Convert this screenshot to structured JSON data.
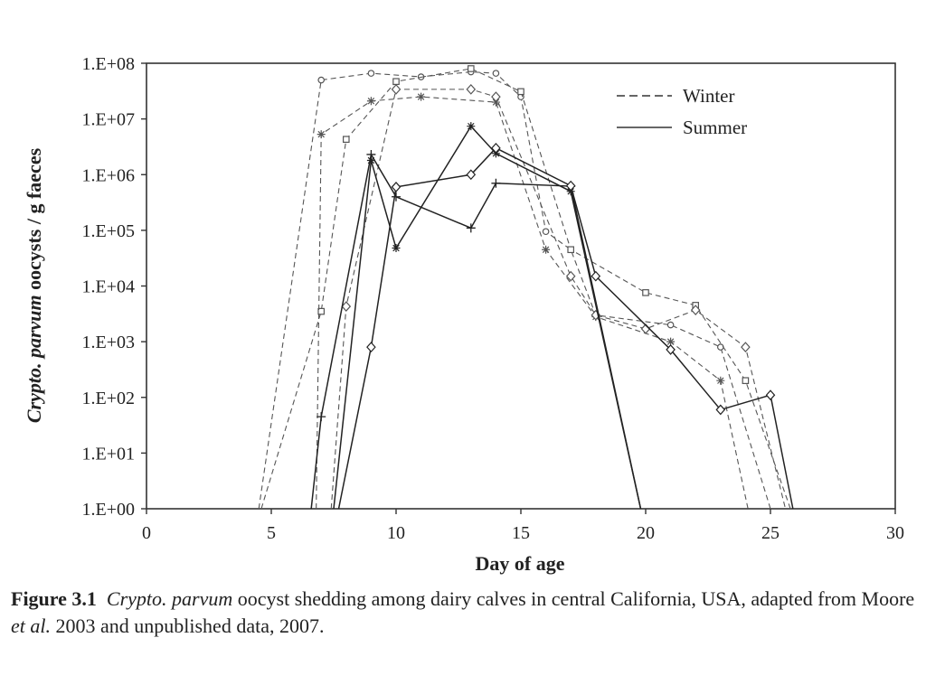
{
  "chart_data": {
    "type": "line",
    "xlabel": "Day of age",
    "ylabel_italic": "Crypto. parvum",
    "ylabel_rest": " oocysts / g faeces",
    "xlim": [
      0,
      30
    ],
    "ylim_log10": [
      0,
      8
    ],
    "y_scale": "log",
    "x_ticks": [
      0,
      5,
      10,
      15,
      20,
      25,
      30
    ],
    "y_ticks": [
      "1.E+00",
      "1.E+01",
      "1.E+02",
      "1.E+03",
      "1.E+04",
      "1.E+05",
      "1.E+06",
      "1.E+07",
      "1.E+08"
    ],
    "grid": false,
    "legend_position": "top-right",
    "legend": [
      {
        "label": "Winter",
        "style": "dashed"
      },
      {
        "label": "Summer",
        "style": "solid"
      }
    ],
    "series": [
      {
        "season": "Winter",
        "marker": "circle",
        "color": "#555555",
        "points": [
          [
            4.5,
            1
          ],
          [
            7,
            50000000
          ],
          [
            9,
            66000000
          ],
          [
            11,
            57000000
          ],
          [
            13,
            70000000
          ],
          [
            14,
            66000000
          ],
          [
            15,
            25000000
          ],
          [
            16,
            95000
          ],
          [
            17,
            45000
          ],
          [
            18,
            3000
          ],
          [
            21,
            2000
          ],
          [
            23,
            800
          ],
          [
            25,
            1
          ]
        ]
      },
      {
        "season": "Winter",
        "marker": "square",
        "color": "#555555",
        "points": [
          [
            4.6,
            1
          ],
          [
            7,
            3500
          ],
          [
            8,
            4300000
          ],
          [
            10,
            47000000
          ],
          [
            13,
            80000000
          ],
          [
            15,
            31000000
          ],
          [
            17,
            45000
          ],
          [
            20,
            7600
          ],
          [
            22,
            4500
          ],
          [
            24,
            200
          ],
          [
            25.8,
            1
          ]
        ]
      },
      {
        "season": "Winter",
        "marker": "star",
        "color": "#555555",
        "points": [
          [
            6.8,
            1
          ],
          [
            7,
            5300000
          ],
          [
            9,
            21000000
          ],
          [
            11,
            25000000
          ],
          [
            14,
            20000000
          ],
          [
            16,
            45000
          ],
          [
            18,
            2800
          ],
          [
            21,
            1000
          ],
          [
            23,
            200
          ],
          [
            24.1,
            1
          ]
        ]
      },
      {
        "season": "Winter",
        "marker": "diamond",
        "color": "#555555",
        "points": [
          [
            7.4,
            1
          ],
          [
            8,
            4300
          ],
          [
            10,
            34000000
          ],
          [
            13,
            34000000
          ],
          [
            14,
            25000000
          ],
          [
            17,
            15000
          ],
          [
            18,
            3000
          ],
          [
            20,
            1700
          ],
          [
            22,
            3700
          ],
          [
            24,
            800
          ],
          [
            25.6,
            1
          ]
        ]
      },
      {
        "season": "Summer",
        "marker": "plus",
        "color": "#222222",
        "points": [
          [
            6.6,
            1
          ],
          [
            7,
            45
          ],
          [
            9,
            2300000
          ],
          [
            10,
            400000
          ],
          [
            13,
            110000
          ],
          [
            14,
            700000
          ],
          [
            17,
            620000
          ],
          [
            19.8,
            1
          ]
        ]
      },
      {
        "season": "Summer",
        "marker": "star",
        "color": "#222222",
        "points": [
          [
            7.5,
            1
          ],
          [
            9,
            1800000
          ],
          [
            10,
            48000
          ],
          [
            13,
            7400000
          ],
          [
            14,
            2400000
          ],
          [
            17,
            500000
          ],
          [
            19.8,
            1
          ]
        ]
      },
      {
        "season": "Summer",
        "marker": "diamond",
        "color": "#222222",
        "points": [
          [
            7.7,
            1
          ],
          [
            9,
            800
          ],
          [
            10,
            600000
          ],
          [
            13,
            1000000
          ],
          [
            14,
            3000000
          ],
          [
            17,
            630000
          ],
          [
            18,
            15000
          ],
          [
            21,
            720
          ],
          [
            23,
            60
          ],
          [
            25,
            110
          ],
          [
            25.9,
            1
          ]
        ]
      }
    ]
  },
  "caption": {
    "label": "Figure 3.1",
    "italic_1": "Crypto. parvum",
    "text_1": " oocyst shedding among dairy calves in central California, USA, adapted from Moore ",
    "italic_2": "et al.",
    "text_2": " 2003 and unpublished data, 2007."
  }
}
